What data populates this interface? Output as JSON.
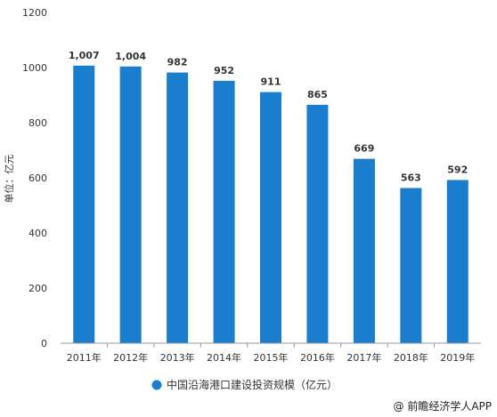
{
  "chart_data": {
    "type": "bar",
    "categories": [
      "2011年",
      "2012年",
      "2013年",
      "2014年",
      "2015年",
      "2016年",
      "2017年",
      "2018年",
      "2019年"
    ],
    "series": [
      {
        "name": "中国沿海港口建设投资规模（亿元）",
        "values": [
          1007,
          1004,
          982,
          952,
          911,
          865,
          669,
          563,
          592
        ],
        "value_labels": [
          "1,007",
          "1,004",
          "982",
          "952",
          "911",
          "865",
          "669",
          "563",
          "592"
        ]
      }
    ],
    "ylabel": "单位：亿元",
    "ylim": [
      0,
      1200
    ],
    "yticks": [
      0,
      200,
      400,
      600,
      800,
      1000,
      1200
    ],
    "grid": false,
    "legend_position": "bottom"
  },
  "colors": {
    "bar": "#1B7DCD",
    "text": "#333333",
    "axis": "#999999"
  },
  "credit": "@ 前瞻经济学人APP"
}
